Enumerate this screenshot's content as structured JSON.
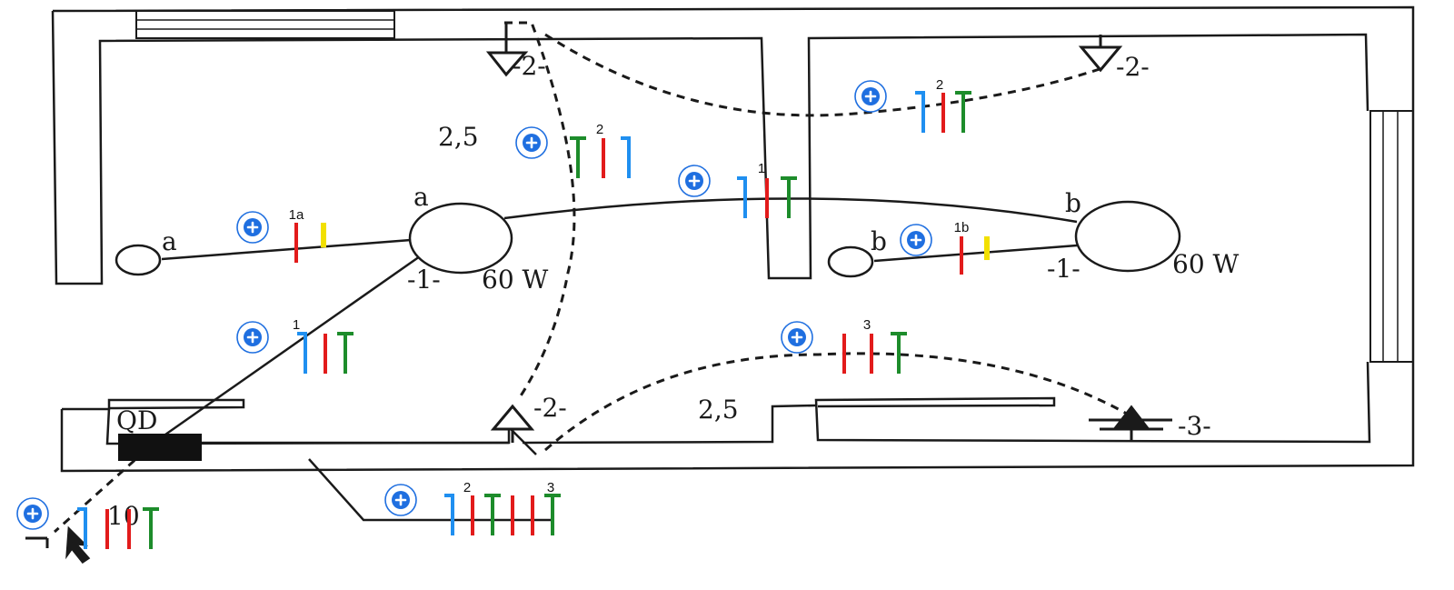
{
  "colors": {
    "neutral": "#1f8ff0",
    "phase": "#e21b1b",
    "earth": "#1d8c2b",
    "return": "#f2e000",
    "plus": "#1f6fe0"
  },
  "rooms": {
    "room_left": {
      "lamp_label": "a",
      "switch_label": "a",
      "lamp_number": "-1-",
      "lamp_power": "60 W"
    },
    "room_right": {
      "lamp_label": "b",
      "switch_label": "b",
      "lamp_number": "-1-",
      "lamp_power": "60 W"
    }
  },
  "outlets": {
    "top_left": "-2-",
    "top_right": "-2-",
    "bottom_mid": "-2-",
    "bottom_right": "-3-"
  },
  "sections": {
    "left": "2,5",
    "bottom": "2,5",
    "feed": "10"
  },
  "panel": {
    "label": "QD"
  },
  "markers": [
    {
      "id": "circuit-1a",
      "label": "1a",
      "conductors": [
        "phase",
        "return"
      ]
    },
    {
      "id": "circuit-2-top",
      "label": "2",
      "conductors": [
        "earth",
        "phase",
        "neutral"
      ]
    },
    {
      "id": "circuit-1-mid",
      "label": "1",
      "conductors": [
        "neutral",
        "phase",
        "earth"
      ]
    },
    {
      "id": "circuit-2-right",
      "label": "2",
      "conductors": [
        "neutral",
        "phase",
        "earth"
      ]
    },
    {
      "id": "circuit-1b",
      "label": "1b",
      "conductors": [
        "phase",
        "return"
      ]
    },
    {
      "id": "circuit-1-diag",
      "label": "1",
      "conductors": [
        "neutral",
        "phase",
        "earth"
      ]
    },
    {
      "id": "circuit-3",
      "label": "3",
      "conductors": [
        "phase",
        "phase",
        "earth"
      ]
    },
    {
      "id": "circuit-2-3",
      "label": "2",
      "label2": "3",
      "conductors": [
        "neutral",
        "phase",
        "earth",
        "phase",
        "phase",
        "earth"
      ]
    },
    {
      "id": "circuit-feed",
      "label": "",
      "conductors": [
        "neutral",
        "phase",
        "phase",
        "earth"
      ]
    }
  ]
}
